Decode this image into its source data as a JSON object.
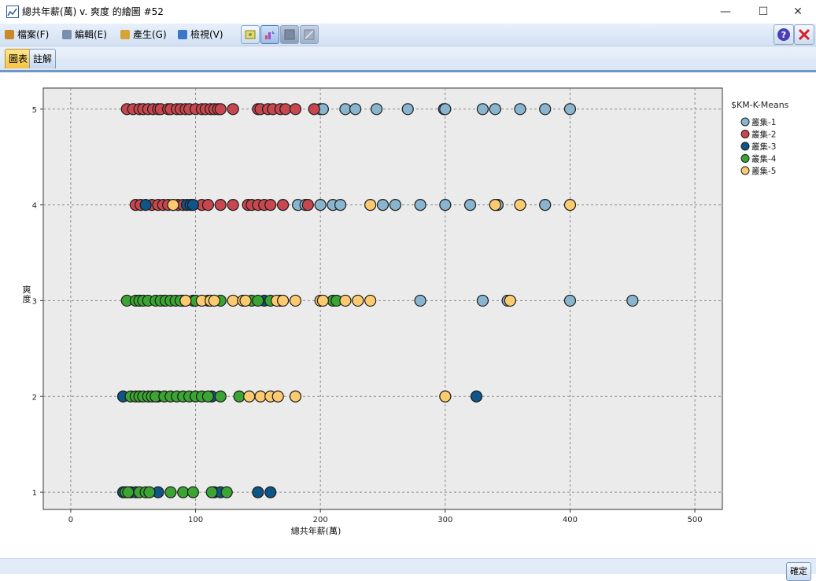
{
  "window": {
    "title": "總共年薪(萬) v. 爽度 的繪圖 #52",
    "minimize_glyph": "—",
    "maximize_glyph": "☐",
    "close_glyph": "✕"
  },
  "menu": [
    {
      "label": "檔案(F)",
      "icon": "folder-icon",
      "color": "#c98a2c"
    },
    {
      "label": "編輯(E)",
      "icon": "edit-icon",
      "color": "#7a8fb0"
    },
    {
      "label": "產生(G)",
      "icon": "generate-icon",
      "color": "#d4a437"
    },
    {
      "label": "檢視(V)",
      "icon": "view-icon",
      "color": "#3a77c4"
    }
  ],
  "toolbar_icons": [
    "interactions-icon",
    "explore-mode-icon",
    "edit-mode-icon",
    "region-icon"
  ],
  "tabs": [
    {
      "label": "圖表",
      "active": true
    },
    {
      "label": "註解",
      "active": false
    }
  ],
  "bottom": {
    "ok_label": "確定"
  },
  "chart_data": {
    "type": "scatter",
    "xlabel": "總共年薪(萬)",
    "ylabel": "爽度",
    "xlim": [
      -22,
      522
    ],
    "ylim": [
      0.82,
      5.22
    ],
    "xticks": [
      0,
      100,
      200,
      300,
      400,
      500
    ],
    "yticks": [
      1,
      2,
      3,
      4,
      5
    ],
    "grid": true,
    "background": "#ebebeb",
    "legend": {
      "title": "$KM-K-Means",
      "placement": "right"
    },
    "series": [
      {
        "name": "叢集-1",
        "color": "#8ab5cf",
        "points": [
          [
            200,
            5
          ],
          [
            202,
            5
          ],
          [
            220,
            5
          ],
          [
            228,
            5
          ],
          [
            245,
            5
          ],
          [
            270,
            5
          ],
          [
            299,
            5
          ],
          [
            300,
            5
          ],
          [
            330,
            5
          ],
          [
            340,
            5
          ],
          [
            360,
            5
          ],
          [
            380,
            5
          ],
          [
            400,
            5
          ],
          [
            182,
            4
          ],
          [
            188,
            4
          ],
          [
            200,
            4
          ],
          [
            210,
            4
          ],
          [
            216,
            4
          ],
          [
            250,
            4
          ],
          [
            260,
            4
          ],
          [
            280,
            4
          ],
          [
            300,
            4
          ],
          [
            320,
            4
          ],
          [
            342,
            4
          ],
          [
            380,
            4
          ],
          [
            280,
            3
          ],
          [
            330,
            3
          ],
          [
            350,
            3
          ],
          [
            400,
            3
          ],
          [
            450,
            3
          ]
        ]
      },
      {
        "name": "叢集-2",
        "color": "#c8474f",
        "points": [
          [
            45,
            5
          ],
          [
            50,
            5
          ],
          [
            55,
            5
          ],
          [
            58,
            5
          ],
          [
            62,
            5
          ],
          [
            66,
            5
          ],
          [
            70,
            5
          ],
          [
            72,
            5
          ],
          [
            78,
            5
          ],
          [
            80,
            5
          ],
          [
            85,
            5
          ],
          [
            88,
            5
          ],
          [
            92,
            5
          ],
          [
            95,
            5
          ],
          [
            100,
            5
          ],
          [
            105,
            5
          ],
          [
            108,
            5
          ],
          [
            112,
            5
          ],
          [
            115,
            5
          ],
          [
            118,
            5
          ],
          [
            120,
            5
          ],
          [
            130,
            5
          ],
          [
            150,
            5
          ],
          [
            152,
            5
          ],
          [
            158,
            5
          ],
          [
            162,
            5
          ],
          [
            168,
            5
          ],
          [
            172,
            5
          ],
          [
            180,
            5
          ],
          [
            195,
            5
          ],
          [
            52,
            4
          ],
          [
            56,
            4
          ],
          [
            65,
            4
          ],
          [
            70,
            4
          ],
          [
            74,
            4
          ],
          [
            78,
            4
          ],
          [
            82,
            4
          ],
          [
            86,
            4
          ],
          [
            90,
            4
          ],
          [
            105,
            4
          ],
          [
            110,
            4
          ],
          [
            120,
            4
          ],
          [
            130,
            4
          ],
          [
            142,
            4
          ],
          [
            145,
            4
          ],
          [
            150,
            4
          ],
          [
            155,
            4
          ],
          [
            160,
            4
          ],
          [
            170,
            4
          ],
          [
            190,
            4
          ]
        ]
      },
      {
        "name": "叢集-3",
        "color": "#0e5588",
        "points": [
          [
            60,
            4
          ],
          [
            93,
            4
          ],
          [
            96,
            4
          ],
          [
            98,
            4
          ],
          [
            55,
            3
          ],
          [
            75,
            3
          ],
          [
            90,
            3
          ],
          [
            155,
            3
          ],
          [
            42,
            2
          ],
          [
            70,
            2
          ],
          [
            113,
            2
          ],
          [
            325,
            2
          ],
          [
            42,
            1
          ],
          [
            48,
            1
          ],
          [
            52,
            1
          ],
          [
            70,
            1
          ],
          [
            115,
            1
          ],
          [
            120,
            1
          ],
          [
            150,
            1
          ],
          [
            160,
            1
          ]
        ]
      },
      {
        "name": "叢集-4",
        "color": "#3aa532",
        "points": [
          [
            45,
            3
          ],
          [
            52,
            3
          ],
          [
            55,
            3
          ],
          [
            58,
            3
          ],
          [
            62,
            3
          ],
          [
            68,
            3
          ],
          [
            72,
            3
          ],
          [
            76,
            3
          ],
          [
            80,
            3
          ],
          [
            84,
            3
          ],
          [
            88,
            3
          ],
          [
            92,
            3
          ],
          [
            98,
            3
          ],
          [
            100,
            3
          ],
          [
            105,
            3
          ],
          [
            110,
            3
          ],
          [
            115,
            3
          ],
          [
            120,
            3
          ],
          [
            145,
            3
          ],
          [
            150,
            3
          ],
          [
            160,
            3
          ],
          [
            168,
            3
          ],
          [
            210,
            3
          ],
          [
            213,
            3
          ],
          [
            48,
            2
          ],
          [
            52,
            2
          ],
          [
            55,
            2
          ],
          [
            58,
            2
          ],
          [
            62,
            2
          ],
          [
            65,
            2
          ],
          [
            68,
            2
          ],
          [
            75,
            2
          ],
          [
            80,
            2
          ],
          [
            85,
            2
          ],
          [
            90,
            2
          ],
          [
            95,
            2
          ],
          [
            100,
            2
          ],
          [
            105,
            2
          ],
          [
            110,
            2
          ],
          [
            120,
            2
          ],
          [
            135,
            2
          ],
          [
            44,
            1
          ],
          [
            46,
            1
          ],
          [
            55,
            1
          ],
          [
            60,
            1
          ],
          [
            63,
            1
          ],
          [
            80,
            1
          ],
          [
            90,
            1
          ],
          [
            98,
            1
          ],
          [
            113,
            1
          ],
          [
            125,
            1
          ]
        ]
      },
      {
        "name": "叢集-5",
        "color": "#fccb6f",
        "points": [
          [
            82,
            4
          ],
          [
            240,
            4
          ],
          [
            340,
            4
          ],
          [
            360,
            4
          ],
          [
            400,
            4
          ],
          [
            92,
            3
          ],
          [
            105,
            3
          ],
          [
            112,
            3
          ],
          [
            115,
            3
          ],
          [
            130,
            3
          ],
          [
            138,
            3
          ],
          [
            140,
            3
          ],
          [
            165,
            3
          ],
          [
            170,
            3
          ],
          [
            180,
            3
          ],
          [
            200,
            3
          ],
          [
            202,
            3
          ],
          [
            220,
            3
          ],
          [
            230,
            3
          ],
          [
            240,
            3
          ],
          [
            352,
            3
          ],
          [
            143,
            2
          ],
          [
            152,
            2
          ],
          [
            160,
            2
          ],
          [
            166,
            2
          ],
          [
            180,
            2
          ],
          [
            300,
            2
          ]
        ]
      }
    ]
  }
}
